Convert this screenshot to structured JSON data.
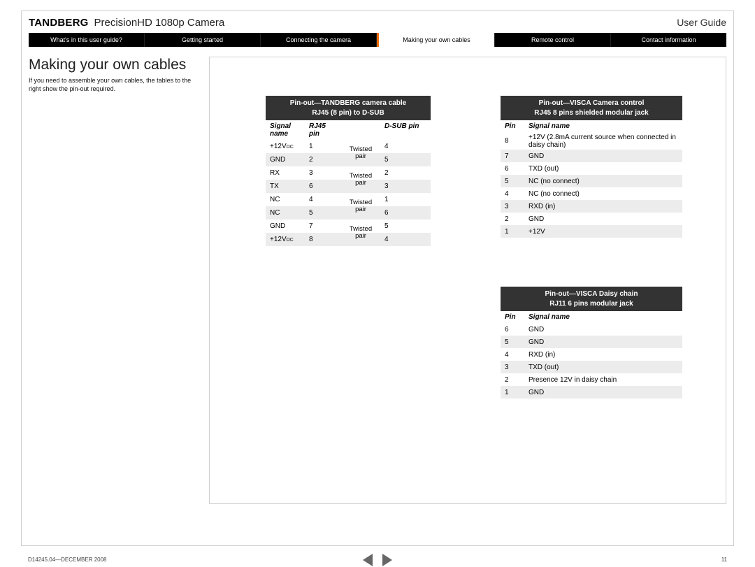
{
  "header": {
    "brand": "TANDBERG",
    "product": "PrecisionHD 1080p Camera",
    "right": "User Guide"
  },
  "nav": {
    "items": [
      "What's in this user guide?",
      "Getting started",
      "Connecting the camera",
      "Making your own cables",
      "Remote control",
      "Contact information"
    ],
    "active_index": 3,
    "accent_color": "#ef6c00"
  },
  "section": {
    "title": "Making your own cables",
    "intro": "If you need to assemble your own cables, the tables to the right show the pin-out required."
  },
  "table1": {
    "title_line1": "Pin-out—TANDBERG camera cable",
    "title_line2": "RJ45 (8 pin) to D-SUB",
    "hdr_signal": "Signal name",
    "hdr_rj45": "RJ45 pin",
    "hdr_dsub": "D-SUB pin",
    "twisted_label": "Twisted pair",
    "rows": [
      {
        "sig": "+12V",
        "dc": true,
        "rj": "1",
        "ds": "4",
        "alt": false
      },
      {
        "sig": "GND",
        "dc": false,
        "rj": "2",
        "ds": "5",
        "alt": true
      },
      {
        "sig": "RX",
        "dc": false,
        "rj": "3",
        "ds": "2",
        "alt": false
      },
      {
        "sig": "TX",
        "dc": false,
        "rj": "6",
        "ds": "3",
        "alt": true
      },
      {
        "sig": "NC",
        "dc": false,
        "rj": "4",
        "ds": "1",
        "alt": false
      },
      {
        "sig": "NC",
        "dc": false,
        "rj": "5",
        "ds": "6",
        "alt": true
      },
      {
        "sig": "GND",
        "dc": false,
        "rj": "7",
        "ds": "5",
        "alt": false
      },
      {
        "sig": "+12V",
        "dc": true,
        "rj": "8",
        "ds": "4",
        "alt": true
      }
    ]
  },
  "table2": {
    "title_line1": "Pin-out—VISCA Camera control",
    "title_line2": "RJ45 8 pins shielded modular jack",
    "hdr_pin": "Pin",
    "hdr_sname": "Signal name",
    "rows": [
      {
        "pin": "8",
        "name": "+12V (2.8mA current source when connected in daisy chain)",
        "alt": false
      },
      {
        "pin": "7",
        "name": "GND",
        "alt": true
      },
      {
        "pin": "6",
        "name": "TXD (out)",
        "alt": false
      },
      {
        "pin": "5",
        "name": "NC (no connect)",
        "alt": true
      },
      {
        "pin": "4",
        "name": "NC (no connect)",
        "alt": false
      },
      {
        "pin": "3",
        "name": "RXD (in)",
        "alt": true
      },
      {
        "pin": "2",
        "name": "GND",
        "alt": false
      },
      {
        "pin": "1",
        "name": "+12V",
        "alt": true
      }
    ]
  },
  "table3": {
    "title_line1": "Pin-out—VISCA Daisy chain",
    "title_line2": "RJ11 6 pins modular jack",
    "hdr_pin": "Pin",
    "hdr_sname": "Signal name",
    "rows": [
      {
        "pin": "6",
        "name": "GND",
        "alt": false
      },
      {
        "pin": "5",
        "name": "GND",
        "alt": true
      },
      {
        "pin": "4",
        "name": "RXD (in)",
        "alt": false
      },
      {
        "pin": "3",
        "name": "TXD (out)",
        "alt": true
      },
      {
        "pin": "2",
        "name": "Presence 12V in daisy chain",
        "alt": false
      },
      {
        "pin": "1",
        "name": "GND",
        "alt": true
      }
    ]
  },
  "footer": {
    "left": "D14245.04—DECEMBER 2008",
    "page": "11"
  },
  "colors": {
    "nav_bg": "#000000",
    "nav_fg": "#ffffff",
    "table_title_bg": "#333333",
    "row_alt_bg": "#ececec",
    "border": "#d0d0d0"
  }
}
